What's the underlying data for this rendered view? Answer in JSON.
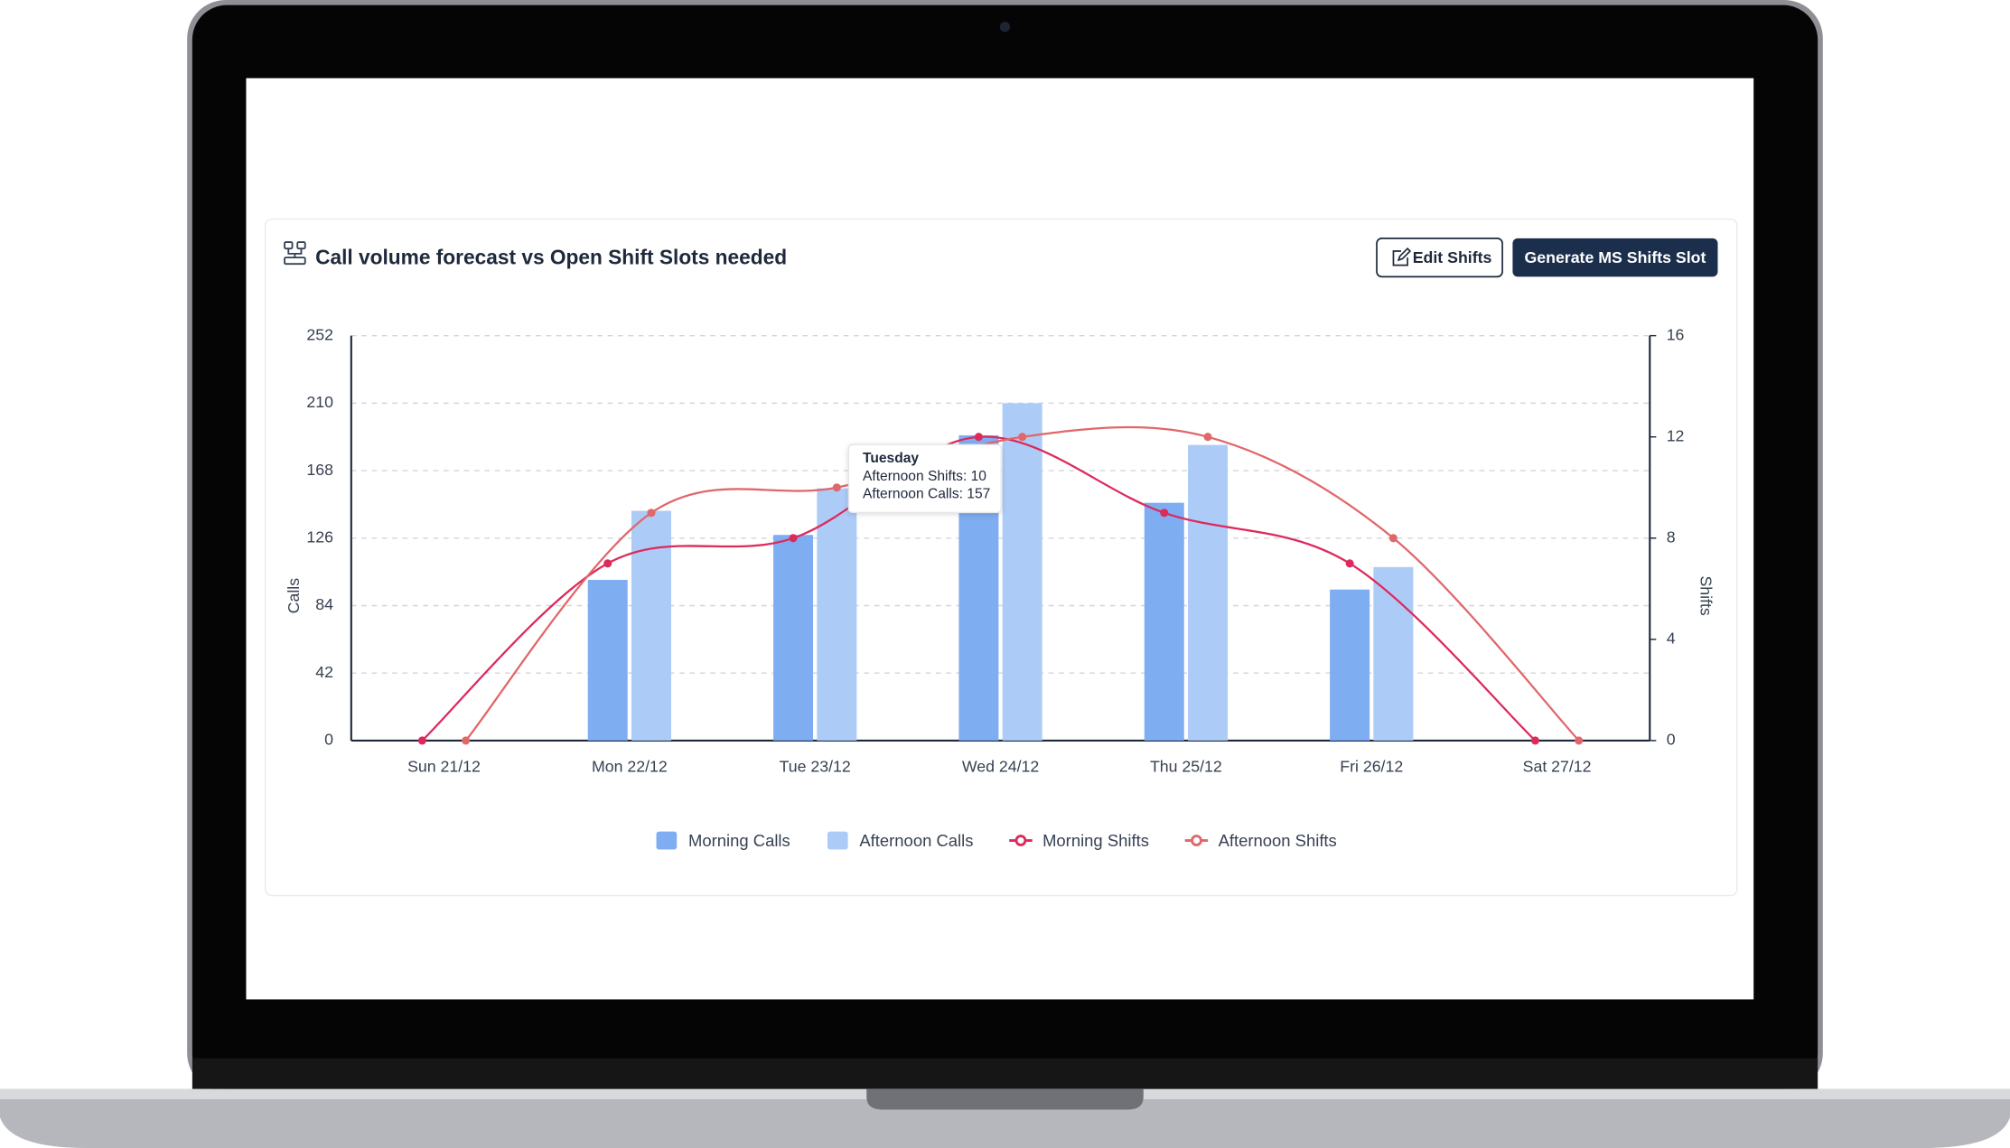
{
  "header": {
    "title": "Call volume forecast vs Open Shift Slots needed",
    "buttons": [
      "Edit Shifts",
      "Generate MS Shifts Slot"
    ]
  },
  "chart_data": {
    "type": "combo",
    "ylabel": "Calls",
    "y2label": "Shifts",
    "categories": [
      "Sun 21/12",
      "Mon 22/12",
      "Tue 23/12",
      "Wed 24/12",
      "Thu 25/12",
      "Fri 26/12",
      "Sat 27/12"
    ],
    "ylim": [
      0,
      252
    ],
    "yticks": [
      0,
      42,
      84,
      126,
      168,
      210,
      252
    ],
    "y2lim": [
      0,
      16
    ],
    "y2ticks": [
      0,
      4,
      8,
      12,
      16
    ],
    "grid": true,
    "legend": "bottom",
    "series": [
      {
        "name": "Morning Calls",
        "type": "bar",
        "color": "#7fadf2",
        "values": [
          0,
          100,
          128,
          190,
          148,
          94,
          0
        ]
      },
      {
        "name": "Afternoon Calls",
        "type": "bar",
        "color": "#adcbf7",
        "values": [
          0,
          143,
          157,
          210,
          184,
          108,
          0
        ]
      },
      {
        "name": "Morning Shifts",
        "type": "line",
        "axis": "y2",
        "color": "#dc2a5c",
        "values": [
          0,
          7,
          8,
          12,
          9,
          7,
          0
        ]
      },
      {
        "name": "Afternoon Shifts",
        "type": "line",
        "axis": "y2",
        "color": "#e0676a",
        "values": [
          0,
          9,
          10,
          12,
          12,
          8,
          0
        ]
      }
    ]
  },
  "tooltip": {
    "title": "Tuesday",
    "lines": [
      "Afternoon Shifts: 10",
      "Afternoon Calls: 157"
    ]
  }
}
